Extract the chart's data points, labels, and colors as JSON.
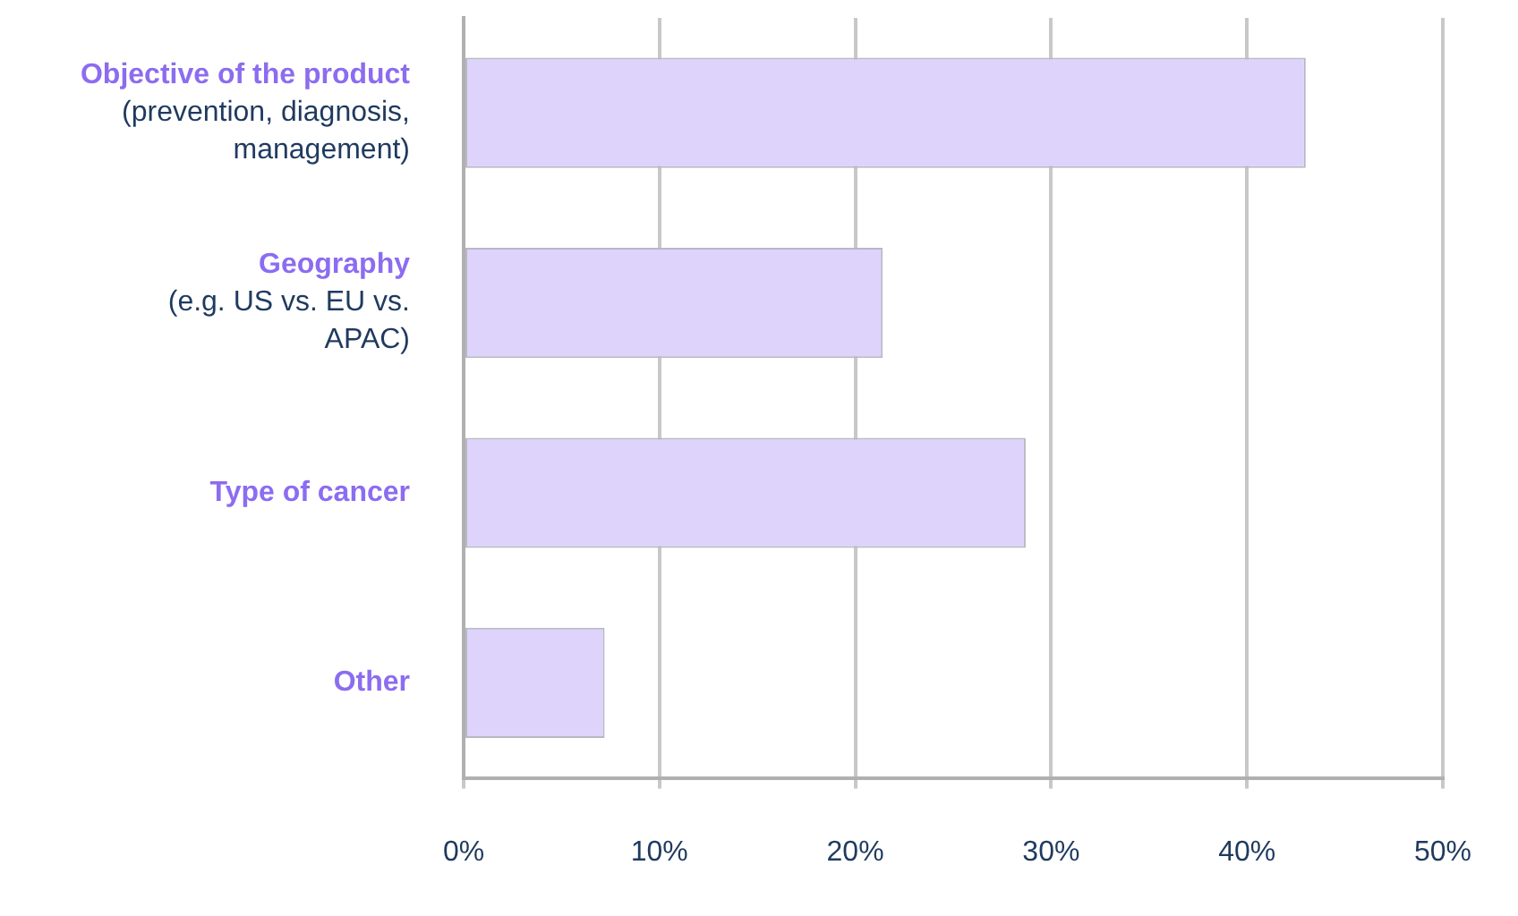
{
  "chart_data": {
    "type": "bar",
    "orientation": "horizontal",
    "categories": [
      "Objective of the product\n(prevention, diagnosis, management)",
      "Geography\n(e.g. US vs. EU vs. APAC)",
      "Type of cancer",
      "Other"
    ],
    "values": [
      43.0,
      21.4,
      28.7,
      7.2
    ],
    "color": "#ddd3fb",
    "xlim": [
      0,
      50
    ],
    "xticks": [
      {
        "value": 0,
        "label": "0%"
      },
      {
        "value": 10,
        "label": "10%"
      },
      {
        "value": 20,
        "label": "20%"
      },
      {
        "value": 30,
        "label": "30%"
      },
      {
        "value": 40,
        "label": "40%"
      },
      {
        "value": 50,
        "label": "50%"
      }
    ],
    "grid": "x",
    "legend": false
  }
}
